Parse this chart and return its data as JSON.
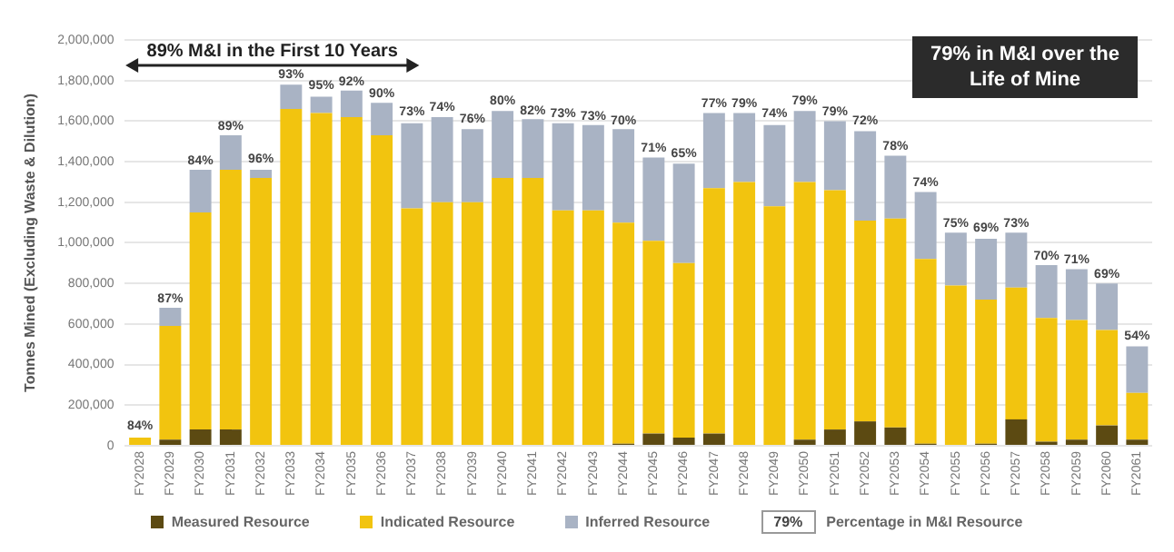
{
  "chart_data": {
    "type": "bar",
    "stacked": true,
    "ylabel": "Tonnes Mined (Excluding Waste & Dilution)",
    "categories": [
      "FY2028",
      "FY2029",
      "FY2030",
      "FY2031",
      "FY2032",
      "FY2033",
      "FY2034",
      "FY2035",
      "FY2036",
      "FY2037",
      "FY2038",
      "FY2039",
      "FY2040",
      "FY2041",
      "FY2042",
      "FY2043",
      "FY2044",
      "FY2045",
      "FY2046",
      "FY2047",
      "FY2048",
      "FY2049",
      "FY2050",
      "FY2051",
      "FY2052",
      "FY2053",
      "FY2054",
      "FY2055",
      "FY2056",
      "FY2057",
      "FY2058",
      "FY2059",
      "FY2060",
      "FY2061"
    ],
    "series": [
      {
        "name": "Measured Resource",
        "color": "#5c4a12",
        "values": [
          0,
          30000,
          80000,
          80000,
          0,
          0,
          0,
          0,
          0,
          0,
          0,
          0,
          0,
          0,
          0,
          0,
          10000,
          60000,
          40000,
          60000,
          null,
          0,
          30000,
          80000,
          120000,
          90000,
          10000,
          0,
          10000,
          130000,
          20000,
          30000,
          100000,
          30000
        ]
      },
      {
        "name": "Indicated Resource",
        "color": "#f2c40f",
        "values": [
          40000,
          560000,
          1070000,
          1280000,
          1320000,
          1660000,
          1640000,
          1620000,
          1530000,
          1170000,
          1200000,
          1200000,
          1320000,
          1320000,
          1160000,
          1160000,
          1090000,
          950000,
          860000,
          1210000,
          1300000,
          1180000,
          1270000,
          1180000,
          990000,
          1030000,
          910000,
          790000,
          710000,
          650000,
          610000,
          590000,
          470000,
          230000
        ]
      },
      {
        "name": "Inferred Resource",
        "color": "#a9b3c4",
        "values": [
          null,
          90000,
          210000,
          170000,
          40000,
          120000,
          80000,
          130000,
          160000,
          420000,
          420000,
          360000,
          330000,
          290000,
          430000,
          420000,
          460000,
          410000,
          490000,
          370000,
          340000,
          400000,
          350000,
          340000,
          440000,
          310000,
          330000,
          260000,
          300000,
          270000,
          260000,
          250000,
          230000,
          230000
        ]
      }
    ],
    "ylim": [
      0,
      2000000
    ],
    "yticks": [
      {
        "value": 0,
        "label": "0"
      },
      {
        "value": 200000,
        "label": "200,000"
      },
      {
        "value": 400000,
        "label": "400,000"
      },
      {
        "value": 600000,
        "label": "600,000"
      },
      {
        "value": 800000,
        "label": "800,000"
      },
      {
        "value": 1000000,
        "label": "1,000,000"
      },
      {
        "value": 1200000,
        "label": "1,200,000"
      },
      {
        "value": 1400000,
        "label": "1,400,000"
      },
      {
        "value": 1600000,
        "label": "1,600,000"
      },
      {
        "value": 1800000,
        "label": "1,800,000"
      },
      {
        "value": 2000000,
        "label": "2,000,000"
      }
    ],
    "grid": "y",
    "legend": "bottom",
    "annotations": [
      "89% M&I in the First 10 Years",
      "79% in M&I over the Life of Mine",
      "79%",
      "Percentage in M&I Resource",
      {
        "text": "84%",
        "x": "FY2028",
        "y": 48000
      },
      {
        "text": "87%",
        "x": "FY2029",
        "y": 677000
      },
      {
        "text": "84%",
        "x": "FY2030",
        "y": 1356000
      },
      {
        "text": "89%",
        "x": "FY2031",
        "y": 1526000
      },
      {
        "text": "96%",
        "x": "FY2032",
        "y": 1365000
      },
      {
        "text": "93%",
        "x": "FY2033",
        "y": 1781000
      },
      {
        "text": "95%",
        "x": "FY2034",
        "y": 1726000
      },
      {
        "text": "92%",
        "x": "FY2035",
        "y": 1745000
      },
      {
        "text": "90%",
        "x": "FY2036",
        "y": 1685000
      },
      {
        "text": "73%",
        "x": "FY2037",
        "y": 1595000
      },
      {
        "text": "74%",
        "x": "FY2038",
        "y": 1617000
      },
      {
        "text": "76%",
        "x": "FY2039",
        "y": 1562000
      },
      {
        "text": "80%",
        "x": "FY2040",
        "y": 1649000
      },
      {
        "text": "82%",
        "x": "FY2041",
        "y": 1603000
      },
      {
        "text": "73%",
        "x": "FY2042",
        "y": 1589000
      },
      {
        "text": "73%",
        "x": "FY2043",
        "y": 1575000
      },
      {
        "text": "70%",
        "x": "FY2044",
        "y": 1553000
      },
      {
        "text": "71%",
        "x": "FY2045",
        "y": 1416000
      },
      {
        "text": "65%",
        "x": "FY2046",
        "y": 1389000
      },
      {
        "text": "77%",
        "x": "FY2047",
        "y": 1638000
      },
      {
        "text": "79%",
        "x": "FY2048",
        "y": 1638000
      },
      {
        "text": "74%",
        "x": "FY2049",
        "y": 1589000
      },
      {
        "text": "79%",
        "x": "FY2050",
        "y": 1649000
      },
      {
        "text": "79%",
        "x": "FY2051",
        "y": 1597000
      },
      {
        "text": "72%",
        "x": "FY2052",
        "y": 1553000
      },
      {
        "text": "78%",
        "x": "FY2053",
        "y": 1425000
      },
      {
        "text": "74%",
        "x": "FY2054",
        "y": 1247000
      },
      {
        "text": "75%",
        "x": "FY2055",
        "y": 1047000
      },
      {
        "text": "69%",
        "x": "FY2056",
        "y": 1025000
      },
      {
        "text": "73%",
        "x": "FY2057",
        "y": 1047000
      },
      {
        "text": "70%",
        "x": "FY2058",
        "y": 885000
      },
      {
        "text": "71%",
        "x": "FY2059",
        "y": 866000
      },
      {
        "text": "69%",
        "x": "FY2060",
        "y": 795000
      },
      {
        "text": "54%",
        "x": "FY2061",
        "y": 493000
      }
    ]
  }
}
